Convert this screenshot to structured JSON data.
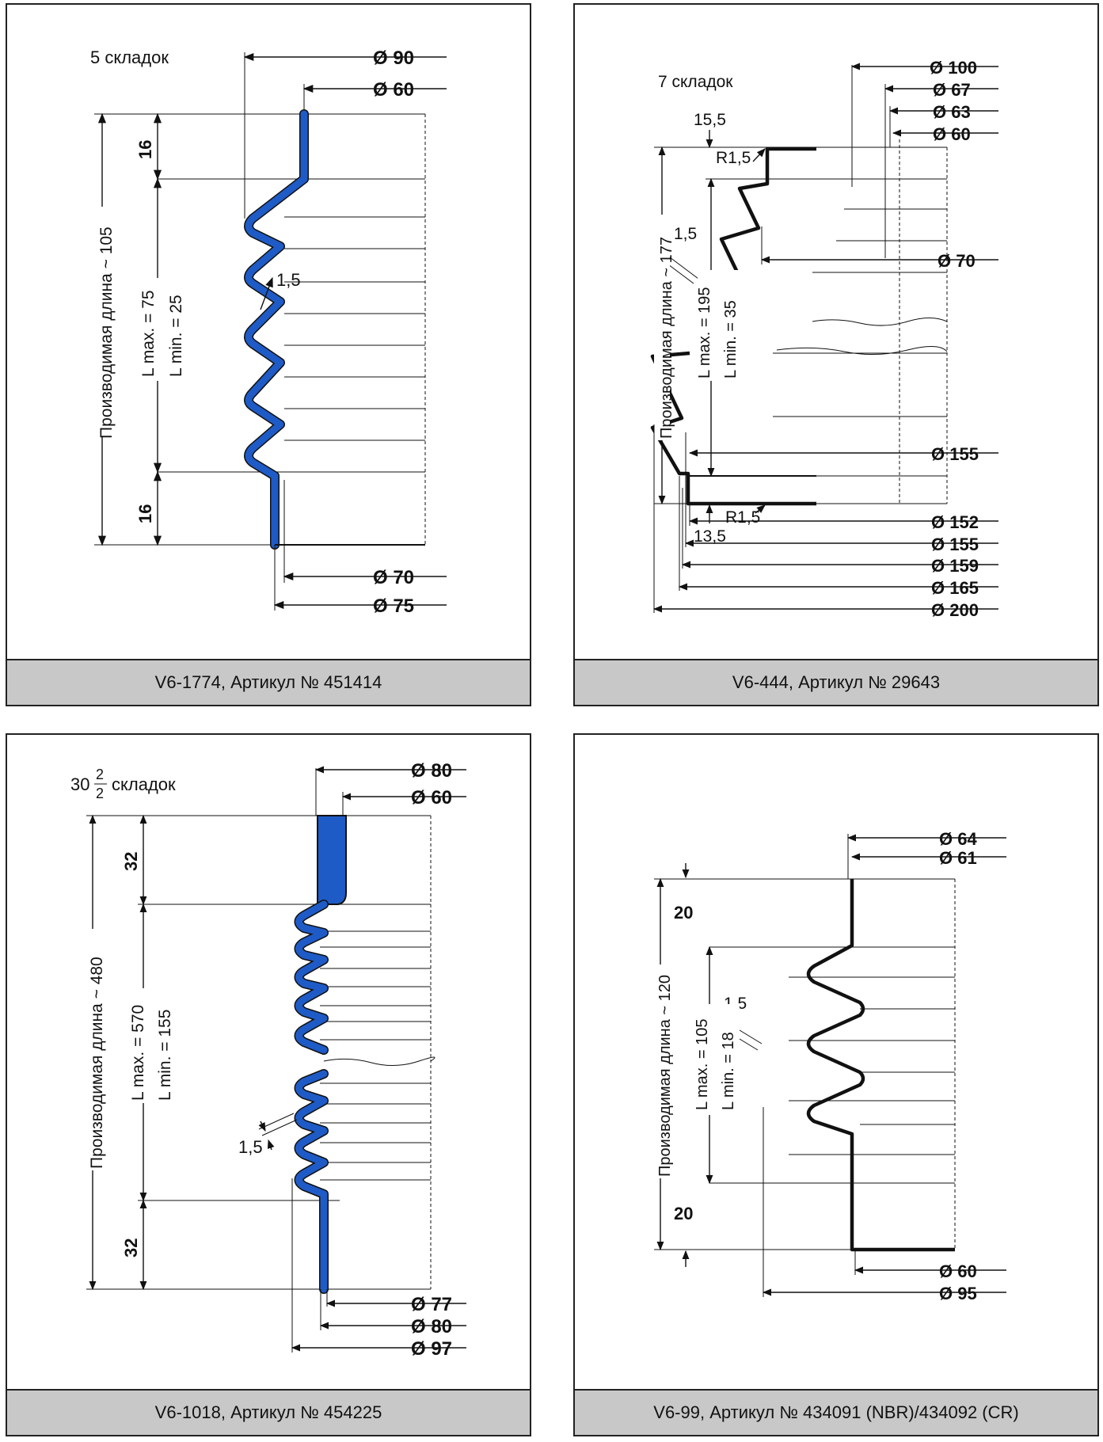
{
  "panels": {
    "p1": {
      "caption": "V6-1774, Артикул № 451414",
      "folds": "5  складок",
      "d_top_outer": "Ø 90",
      "d_top_inner": "Ø 60",
      "d_bot_inner": "Ø 70",
      "d_bot_outer": "Ø 75",
      "len_total": "Производимая длина ~ 105",
      "l_max": "L max. = 75",
      "l_min": "L min.  = 25",
      "end_top": "16",
      "end_bot": "16",
      "wall": "1,5"
    },
    "p2": {
      "caption": "V6-444, Артикул № 29643",
      "folds": "7 складок",
      "d1": "Ø 100",
      "d2": "Ø 67",
      "d3": "Ø 63",
      "d4": "Ø 60",
      "d5": "Ø 70",
      "d6": "Ø 155",
      "d7": "Ø 152",
      "d8": "Ø 155",
      "d9": "Ø 159",
      "d10": "Ø 165",
      "d11": "Ø 200",
      "top_off": "15,5",
      "bot_off": "13,5",
      "r_top": "R1,5",
      "r_bot": "R1,5",
      "wall": "1,5",
      "len_total": "Производимая длина ~ 177",
      "l_max": "L max. = 195",
      "l_min": "L min.  = 35"
    },
    "p3": {
      "caption": "V6-1018, Артикул № 454225",
      "folds_int": "30",
      "folds_num": "2",
      "folds_den": "2",
      "folds_word": "складок",
      "d_top_outer": "Ø 80",
      "d_top_inner": "Ø 60",
      "d_b1": "Ø 77",
      "d_b2": "Ø 80",
      "d_b3": "Ø 97",
      "len_total": "Производимая длина ~ 480",
      "l_max": "L max. = 570",
      "l_min": "L min.  = 155",
      "end_top": "32",
      "end_bot": "32",
      "wall": "1,5"
    },
    "p4": {
      "caption": "V6-99, Артикул № 434091 (NBR)/434092 (CR)",
      "d1": "Ø 64",
      "d2": "Ø 61",
      "d3": "Ø 60",
      "d4": "Ø 95",
      "len_total": "Производимая длина ~ 120",
      "l_max": "L max. = 105",
      "l_min": "L min.  = 18",
      "end_top": "20",
      "end_bot": "20",
      "wall": "1,5"
    }
  }
}
